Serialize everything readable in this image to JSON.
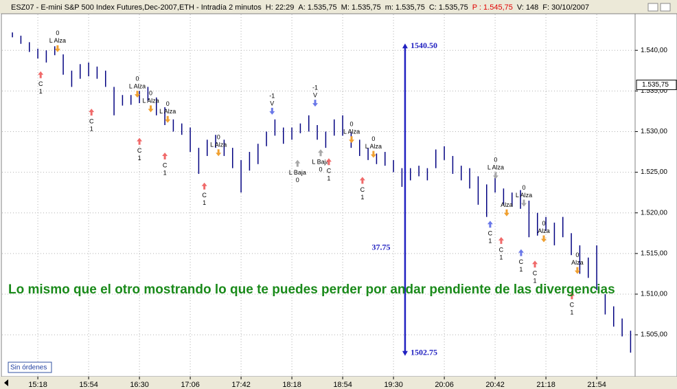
{
  "header": {
    "parts": [
      {
        "text": "ESZ07 - E-mini S&P 500 Index Futures,Dec-2007,ETH - Intradía 2 minutos",
        "color": "#000000"
      },
      {
        "text": "H: 22:29",
        "color": "#000000"
      },
      {
        "text": "A: 1.535,75",
        "color": "#000000"
      },
      {
        "text": "M: 1.535,75",
        "color": "#000000"
      },
      {
        "text": "m: 1.535,75",
        "color": "#000000"
      },
      {
        "text": "C: 1.535,75",
        "color": "#000000"
      },
      {
        "text": "P : 1.545,75",
        "color": "#e00000"
      },
      {
        "text": "V: 148",
        "color": "#000000"
      },
      {
        "text": "F: 30/10/2007",
        "color": "#000000"
      }
    ]
  },
  "status": "Sin órdenes",
  "chart_data": {
    "type": "range",
    "annotation": "Lo mismo que el otro mostrando lo que te puedes perder por andar pendiente de las divergencias",
    "color": "#000080",
    "grid": true,
    "xlim": [
      891.2,
      1341.2
    ],
    "ylim": [
      1499.85,
      1544.5
    ],
    "xticks": [
      {
        "value": 918,
        "label": "15:18"
      },
      {
        "value": 954,
        "label": "15:54"
      },
      {
        "value": 990,
        "label": "16:30"
      },
      {
        "value": 1026,
        "label": "17:06"
      },
      {
        "value": 1062,
        "label": "17:42"
      },
      {
        "value": 1098,
        "label": "18:18"
      },
      {
        "value": 1134,
        "label": "18:54"
      },
      {
        "value": 1170,
        "label": "19:30"
      },
      {
        "value": 1206,
        "label": "20:06"
      },
      {
        "value": 1242,
        "label": "20:42"
      },
      {
        "value": 1278,
        "label": "21:18"
      },
      {
        "value": 1314,
        "label": "21:54"
      }
    ],
    "yticks": [
      {
        "value": 1505,
        "label": "1.505,00"
      },
      {
        "value": 1510,
        "label": "1.510,00"
      },
      {
        "value": 1515,
        "label": "1.515,00"
      },
      {
        "value": 1520,
        "label": "1.520,00"
      },
      {
        "value": 1525,
        "label": "1.525,00"
      },
      {
        "value": 1530,
        "label": "1.530,00"
      },
      {
        "value": 1535,
        "label": "1.535,00"
      },
      {
        "value": 1540,
        "label": "1.540,00"
      }
    ],
    "last": {
      "value": 1535.75,
      "label": "1.535,75"
    },
    "x": [
      900,
      906,
      912,
      918,
      924,
      930,
      936,
      942,
      948,
      954,
      960,
      966,
      972,
      978,
      984,
      990,
      996,
      1002,
      1008,
      1014,
      1020,
      1026,
      1032,
      1038,
      1044,
      1050,
      1056,
      1062,
      1068,
      1074,
      1080,
      1086,
      1092,
      1098,
      1104,
      1110,
      1116,
      1122,
      1128,
      1134,
      1140,
      1146,
      1152,
      1158,
      1164,
      1170,
      1176,
      1182,
      1188,
      1194,
      1200,
      1206,
      1212,
      1218,
      1224,
      1230,
      1236,
      1242,
      1248,
      1254,
      1260,
      1266,
      1272,
      1278,
      1284,
      1290,
      1296,
      1302,
      1308,
      1314,
      1320,
      1326,
      1332,
      1338
    ],
    "high": [
      1542.2,
      1541.8,
      1541.0,
      1540.2,
      1540.0,
      1540.5,
      1539.5,
      1537.5,
      1538.3,
      1538.5,
      1538.0,
      1537.5,
      1535.5,
      1534.5,
      1534.5,
      1535.0,
      1535.5,
      1534.2,
      1533.0,
      1531.5,
      1531.0,
      1530.5,
      1528.0,
      1529.0,
      1529.6,
      1529.0,
      1528.0,
      1526.5,
      1527.5,
      1528.5,
      1530.0,
      1531.5,
      1530.5,
      1530.5,
      1531.0,
      1532.0,
      1530.8,
      1530.0,
      1531.5,
      1532.0,
      1530.0,
      1529.0,
      1528.0,
      1527.3,
      1527.5,
      1526.5,
      1525.5,
      1525.5,
      1525.8,
      1525.5,
      1527.8,
      1528.2,
      1527.0,
      1525.8,
      1525.5,
      1524.5,
      1523.5,
      1524.8,
      1523.0,
      1522.5,
      1522.8,
      1521.5,
      1520.0,
      1519.5,
      1518.8,
      1519.5,
      1517.5,
      1516.0,
      1514.5,
      1516.0,
      1510.0,
      1508.5,
      1507.0,
      1505.5
    ],
    "low": [
      1541.6,
      1540.8,
      1539.8,
      1539.0,
      1538.5,
      1539.4,
      1537.0,
      1535.5,
      1536.5,
      1536.8,
      1536.5,
      1535.5,
      1532.0,
      1533.2,
      1533.3,
      1533.5,
      1533.8,
      1532.0,
      1530.8,
      1530.0,
      1529.6,
      1527.5,
      1524.8,
      1527.0,
      1528.0,
      1527.0,
      1525.5,
      1522.5,
      1525.2,
      1526.0,
      1528.2,
      1529.5,
      1528.5,
      1529.0,
      1529.8,
      1530.0,
      1529.0,
      1528.0,
      1529.5,
      1529.5,
      1528.0,
      1527.0,
      1526.5,
      1526.0,
      1525.8,
      1525.0,
      1523.2,
      1524.0,
      1524.5,
      1524.0,
      1525.5,
      1526.5,
      1524.8,
      1524.0,
      1523.0,
      1521.0,
      1519.5,
      1522.5,
      1521.0,
      1520.8,
      1520.5,
      1517.0,
      1517.2,
      1517.8,
      1516.0,
      1517.0,
      1514.8,
      1512.5,
      1512.0,
      1510.5,
      1507.5,
      1506.0,
      1504.8,
      1502.8
    ],
    "measure": {
      "x": 1178.2,
      "top": 1540.5,
      "bottom": 1502.75,
      "top_label": "1540.50",
      "bottom_label": "1502.75",
      "diff_label": "37.75",
      "color": "#2020c0"
    },
    "signals": [
      {
        "x": 920,
        "y": 1537,
        "dir": "up",
        "color": "#f06a6a",
        "text": [
          "C",
          "1"
        ]
      },
      {
        "x": 932,
        "y": 1540.2,
        "dir": "down",
        "color": "#f0a030",
        "text": [
          "0",
          "L Alza"
        ]
      },
      {
        "x": 956,
        "y": 1532.4,
        "dir": "up",
        "color": "#f06a6a",
        "text": [
          "C",
          "1"
        ]
      },
      {
        "x": 988.5,
        "y": 1534.6,
        "dir": "down",
        "color": "#f0a030",
        "text": [
          "0",
          "L Alza"
        ]
      },
      {
        "x": 998,
        "y": 1532.8,
        "dir": "down",
        "color": "#f0a030",
        "text": [
          "0",
          "L Alza"
        ]
      },
      {
        "x": 1010,
        "y": 1531.5,
        "dir": "down",
        "color": "#f0a030",
        "text": [
          "0",
          "L Alza"
        ]
      },
      {
        "x": 990,
        "y": 1528.8,
        "dir": "up",
        "color": "#f06a6a",
        "text": [
          "C",
          "1"
        ]
      },
      {
        "x": 1008,
        "y": 1527,
        "dir": "up",
        "color": "#f06a6a",
        "text": [
          "C",
          "1"
        ]
      },
      {
        "x": 1036,
        "y": 1523.3,
        "dir": "up",
        "color": "#f06a6a",
        "text": [
          "C",
          "1"
        ]
      },
      {
        "x": 1046,
        "y": 1527.4,
        "dir": "down",
        "color": "#f0a030",
        "text": [
          "0",
          "L Alza"
        ]
      },
      {
        "x": 1084,
        "y": 1532.5,
        "dir": "down",
        "color": "#6a78e8",
        "text": [
          "-1",
          "V"
        ]
      },
      {
        "x": 1102,
        "y": 1526.1,
        "dir": "up",
        "color": "#a8a8a8",
        "text": [
          "L Baja",
          "0"
        ]
      },
      {
        "x": 1114.5,
        "y": 1533.5,
        "dir": "down",
        "color": "#6a78e8",
        "text": [
          "-1",
          "V"
        ]
      },
      {
        "x": 1118.4,
        "y": 1527.4,
        "dir": "up",
        "color": "#a8a8a8",
        "text": [
          "L Baja",
          "0"
        ]
      },
      {
        "x": 1124.2,
        "y": 1526.3,
        "dir": "up",
        "color": "#f06a6a",
        "text": [
          "C",
          "1"
        ]
      },
      {
        "x": 1140.3,
        "y": 1529,
        "dir": "down",
        "color": "#f0a030",
        "text": [
          "0",
          "L Alza"
        ]
      },
      {
        "x": 1155.8,
        "y": 1527.2,
        "dir": "down",
        "color": "#f0a030",
        "text": [
          "0",
          "L Alza"
        ]
      },
      {
        "x": 1148,
        "y": 1524,
        "dir": "up",
        "color": "#f06a6a",
        "text": [
          "C",
          "1"
        ]
      },
      {
        "x": 1242.4,
        "y": 1524.6,
        "dir": "down",
        "color": "#a8a8a8",
        "text": [
          "0",
          "L Alza"
        ]
      },
      {
        "x": 1238.5,
        "y": 1518.6,
        "dir": "up",
        "color": "#6a78e8",
        "text": [
          "C",
          "1"
        ]
      },
      {
        "x": 1250.2,
        "y": 1520,
        "dir": "down",
        "color": "#f0a030",
        "text": [
          "Alza"
        ]
      },
      {
        "x": 1246.3,
        "y": 1516.6,
        "dir": "up",
        "color": "#f06a6a",
        "text": [
          "C",
          "1"
        ]
      },
      {
        "x": 1262.4,
        "y": 1521.2,
        "dir": "down",
        "color": "#a8a8a8",
        "text": [
          "0",
          "L Alza"
        ]
      },
      {
        "x": 1260.4,
        "y": 1515.1,
        "dir": "up",
        "color": "#6a78e8",
        "text": [
          "C",
          "1"
        ]
      },
      {
        "x": 1276.5,
        "y": 1516.8,
        "dir": "down",
        "color": "#f0a030",
        "text": [
          "0",
          "Alza"
        ]
      },
      {
        "x": 1270.2,
        "y": 1513.7,
        "dir": "up",
        "color": "#f06a6a",
        "text": [
          "C",
          "1"
        ]
      },
      {
        "x": 1300.3,
        "y": 1512.9,
        "dir": "down",
        "color": "#f0a030",
        "text": [
          "0",
          "Alza"
        ]
      },
      {
        "x": 1296.4,
        "y": 1509.8,
        "dir": "up",
        "color": "#f06a6a",
        "text": [
          "C",
          "1"
        ]
      }
    ]
  }
}
